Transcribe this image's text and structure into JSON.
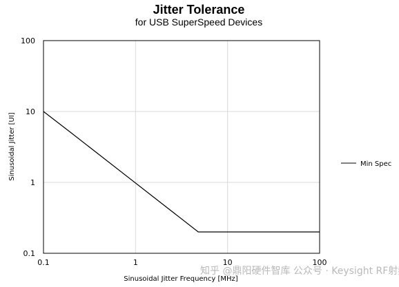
{
  "chart_data": {
    "type": "line",
    "title": "Jitter Tolerance",
    "subtitle": "for USB SuperSpeed Devices",
    "xlabel": "Sinusoidal Jitter Frequency [MHz]",
    "ylabel": "Sinusoidal Jitter [UI]",
    "xscale": "log",
    "yscale": "log",
    "xlim": [
      0.1,
      100
    ],
    "ylim": [
      0.1,
      100
    ],
    "x_ticks": [
      0.1,
      1,
      10,
      100
    ],
    "x_tick_labels": [
      "0.1",
      "1",
      "10",
      "100"
    ],
    "y_ticks": [
      0.1,
      1,
      10,
      100
    ],
    "y_tick_labels": [
      "0.1",
      "1",
      "10",
      "100"
    ],
    "grid": true,
    "legend_position": "right",
    "series": [
      {
        "name": "Min Spec",
        "color": "#000000",
        "x": [
          0.1,
          0.2,
          4.8,
          100
        ],
        "y": [
          10,
          5,
          0.2,
          0.2
        ]
      }
    ]
  },
  "watermark": {
    "text": "知乎 @鼎阳硬件智库  公众号 · Keysight RF射频测试资料分享",
    "color": "#b9b9b9"
  }
}
